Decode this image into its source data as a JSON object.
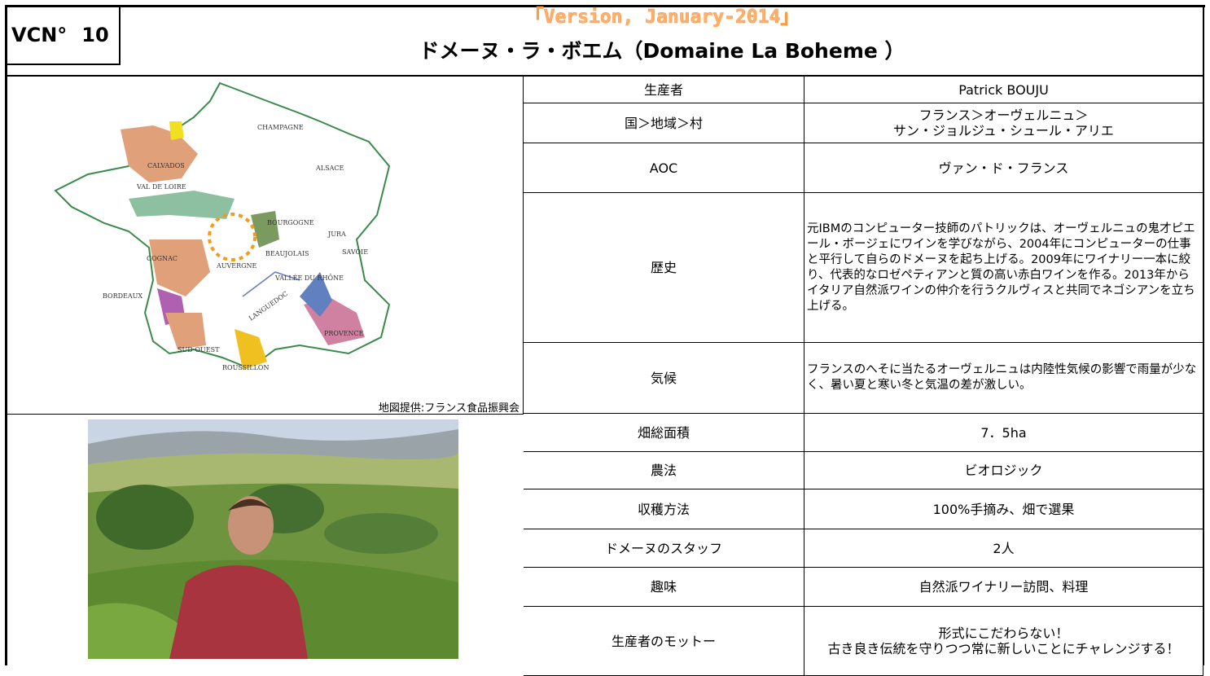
{
  "header": {
    "id_label": "VCN°",
    "id_number": "10",
    "version": "「Version, January-2014」",
    "title": "ドメーヌ・ラ・ボエム（Domaine La Boheme ）"
  },
  "map": {
    "credit": "地図提供:フランス食品振興会",
    "labels": [
      "CHAMPAGNE",
      "CALVADOS",
      "ALSACE",
      "VAL DE LOIRE",
      "BOURGOGNE",
      "JURA",
      "COGNAC",
      "BEAUJOLAIS",
      "SAVOIE",
      "AUVERGNE",
      "VALLÉE DU RHÔNE",
      "BORDEAUX",
      "LANGUEDOC",
      "PROVENCE",
      "SUD-OUEST",
      "ROUSSILLON"
    ]
  },
  "table": {
    "rows": [
      [
        "生産者",
        "Patrick BOUJU"
      ],
      [
        "国＞地域＞村",
        "フランス＞オーヴェルニュ＞\nサン・ジョルジュ・シュール・アリエ"
      ],
      [
        "AOC",
        "ヴァン・ド・フランス"
      ],
      [
        "歴史",
        "元IBMのコンピューター技師のパトリックは、オーヴェルニュの鬼才ピエール・ボージェにワインを学びながら、2004年にコンピューターの仕事と平行して自らのドメーヌを起ち上げる。2009年にワイナリー一本に絞り、代表的なロゼペティアンと質の高い赤白ワインを作る。2013年からイタリア自然派ワインの仲介を行うクルヴィスと共同でネゴシアンを立ち上げる。"
      ],
      [
        "気候",
        "フランスのへそに当たるオーヴェルニュは内陸性気候の影響で雨量が少なく、暑い夏と寒い冬と気温の差が激しい。"
      ],
      [
        "畑総面積",
        "7．5ha"
      ],
      [
        "農法",
        "ビオロジック"
      ],
      [
        "収穫方法",
        "100%手摘み、畑で選果"
      ],
      [
        "ドメーヌのスタッフ",
        "2人"
      ],
      [
        "趣味",
        "自然派ワイナリー訪問、料理"
      ],
      [
        "生産者のモットー",
        "形式にこだわらない！\n古き良き伝統を守りつつ常に新しいことにチャレンジする！"
      ]
    ]
  }
}
